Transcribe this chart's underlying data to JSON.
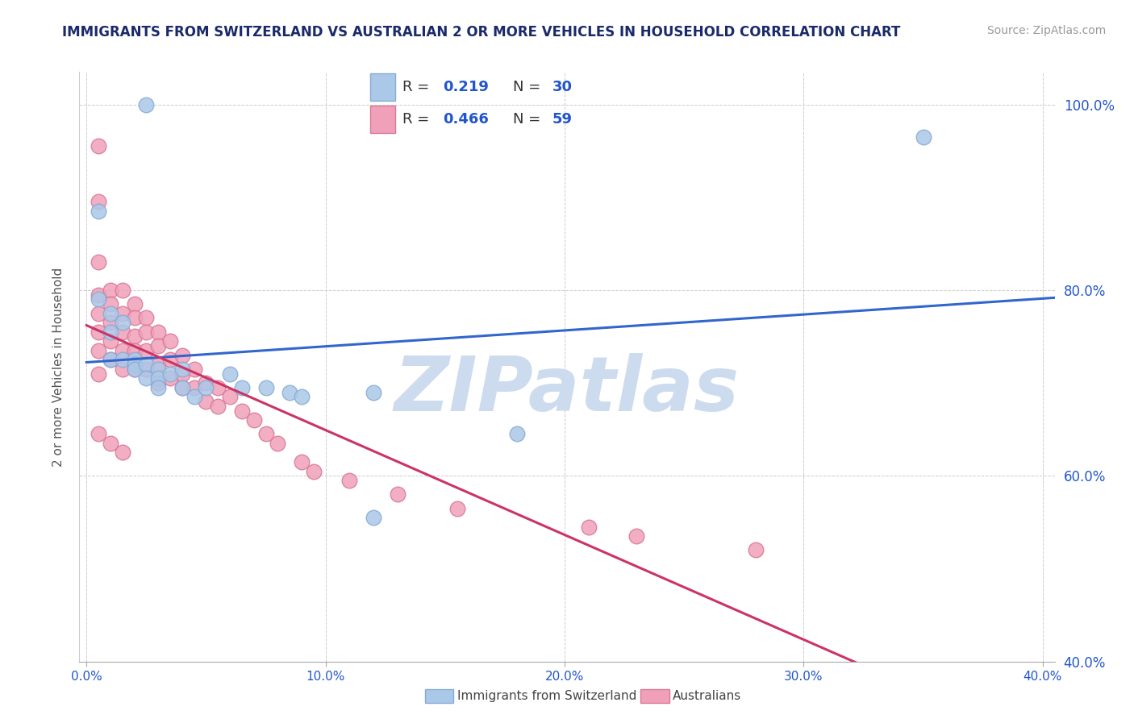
{
  "title": "IMMIGRANTS FROM SWITZERLAND VS AUSTRALIAN 2 OR MORE VEHICLES IN HOUSEHOLD CORRELATION CHART",
  "source": "Source: ZipAtlas.com",
  "ylabel": "2 or more Vehicles in Household",
  "blue_R": 0.219,
  "blue_N": 30,
  "pink_R": 0.466,
  "pink_N": 59,
  "legend_label_blue": "Immigrants from Switzerland",
  "legend_label_pink": "Australians",
  "watermark": "ZIPatlas",
  "watermark_color": "#ccdcee",
  "title_color": "#1a2a6a",
  "source_color": "#999999",
  "ylabel_color": "#555555",
  "blue_dot_color": "#aac8e8",
  "blue_dot_edge": "#88aad4",
  "pink_dot_color": "#f0a0b8",
  "pink_dot_edge": "#d87898",
  "blue_line_color": "#3366cc",
  "pink_line_color": "#cc3366",
  "legend_R_N_color": "#2255cc",
  "tick_color": "#2255cc",
  "grid_color": "#cccccc",
  "blue_x": [
    0.025,
    0.005,
    0.005,
    0.01,
    0.01,
    0.01,
    0.015,
    0.015,
    0.02,
    0.02,
    0.02,
    0.025,
    0.025,
    0.03,
    0.03,
    0.03,
    0.035,
    0.04,
    0.04,
    0.045,
    0.05,
    0.06,
    0.065,
    0.075,
    0.085,
    0.09,
    0.12,
    0.35,
    0.18,
    0.12
  ],
  "blue_y": [
    1.0,
    0.885,
    0.79,
    0.775,
    0.755,
    0.725,
    0.765,
    0.725,
    0.725,
    0.72,
    0.715,
    0.72,
    0.705,
    0.715,
    0.705,
    0.695,
    0.71,
    0.715,
    0.695,
    0.685,
    0.695,
    0.71,
    0.695,
    0.695,
    0.69,
    0.685,
    0.69,
    0.965,
    0.645,
    0.555
  ],
  "pink_x": [
    0.005,
    0.005,
    0.005,
    0.005,
    0.005,
    0.005,
    0.005,
    0.005,
    0.01,
    0.01,
    0.01,
    0.01,
    0.01,
    0.015,
    0.015,
    0.015,
    0.015,
    0.015,
    0.02,
    0.02,
    0.02,
    0.02,
    0.02,
    0.025,
    0.025,
    0.025,
    0.025,
    0.03,
    0.03,
    0.03,
    0.03,
    0.035,
    0.035,
    0.035,
    0.04,
    0.04,
    0.04,
    0.045,
    0.045,
    0.05,
    0.05,
    0.055,
    0.055,
    0.06,
    0.065,
    0.07,
    0.075,
    0.08,
    0.09,
    0.095,
    0.11,
    0.13,
    0.155,
    0.21,
    0.23,
    0.28,
    0.005,
    0.01,
    0.015
  ],
  "pink_y": [
    0.955,
    0.895,
    0.83,
    0.795,
    0.775,
    0.755,
    0.735,
    0.71,
    0.8,
    0.785,
    0.765,
    0.745,
    0.725,
    0.8,
    0.775,
    0.755,
    0.735,
    0.715,
    0.785,
    0.77,
    0.75,
    0.735,
    0.715,
    0.77,
    0.755,
    0.735,
    0.715,
    0.755,
    0.74,
    0.72,
    0.7,
    0.745,
    0.725,
    0.705,
    0.73,
    0.71,
    0.695,
    0.715,
    0.695,
    0.7,
    0.68,
    0.695,
    0.675,
    0.685,
    0.67,
    0.66,
    0.645,
    0.635,
    0.615,
    0.605,
    0.595,
    0.58,
    0.565,
    0.545,
    0.535,
    0.52,
    0.645,
    0.635,
    0.625
  ],
  "xlim": [
    -0.003,
    0.405
  ],
  "ylim": [
    0.44,
    1.035
  ],
  "x_ticks": [
    0.0,
    0.1,
    0.2,
    0.3,
    0.4
  ],
  "x_tick_labels": [
    "0.0%",
    "10.0%",
    "20.0%",
    "30.0%",
    "40.0%"
  ],
  "y_ticks": [
    0.4,
    0.6,
    0.8,
    1.0
  ],
  "y_tick_labels": [
    "40.0%",
    "60.0%",
    "80.0%",
    "100.0%"
  ]
}
